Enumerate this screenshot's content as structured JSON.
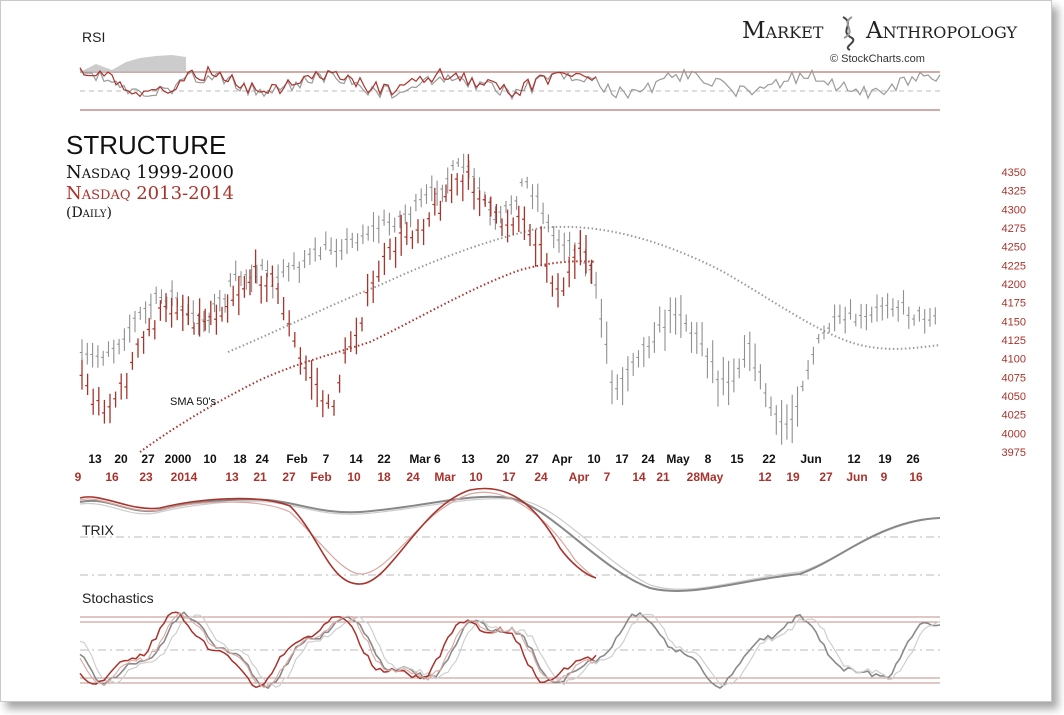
{
  "brand": {
    "name_left": "Market",
    "name_right": "Anthropology",
    "credit": "© StockCharts.com"
  },
  "titles": {
    "main": "STRUCTURE",
    "line1": "Nasdaq 1999-2000",
    "line2": "Nasdaq 2013-2014",
    "line3": "(Daily)",
    "sma": "SMA 50's"
  },
  "panels": {
    "rsi": "RSI",
    "trix": "TRIX",
    "stoch": "Stochastics"
  },
  "colors": {
    "series_2000": "#8f8f8f",
    "series_2014": "#a8332c",
    "axis_red": "#a8332c"
  },
  "chart_data": {
    "type": "candlestick",
    "ylabel_side": "right",
    "yticks": [
      4350,
      4325,
      4300,
      4275,
      4250,
      4225,
      4200,
      4175,
      4150,
      4125,
      4100,
      4075,
      4050,
      4025,
      4000,
      3975
    ],
    "ylim": [
      3975,
      4360
    ],
    "x_labels_2000": [
      "13",
      "20",
      "27",
      "2000",
      "10",
      "18",
      "24",
      "Feb",
      "7",
      "14",
      "22",
      "Mar 6",
      "13",
      "20",
      "27",
      "Apr",
      "10",
      "17",
      "24",
      "May",
      "8",
      "15",
      "22",
      "Jun",
      "12",
      "19",
      "26"
    ],
    "x_labels_2014": [
      "9",
      "16",
      "23",
      "2014",
      "13",
      "21",
      "27",
      "Feb",
      "10",
      "18",
      "24",
      "Mar",
      "10",
      "17",
      "24",
      "Apr",
      "7",
      "14",
      "21",
      "28May",
      "12",
      "19",
      "27",
      "Jun",
      "9",
      "16"
    ],
    "series": [
      {
        "name": "Nasdaq 1999-2000"
      },
      {
        "name": "Nasdaq 2013-2014"
      }
    ]
  }
}
